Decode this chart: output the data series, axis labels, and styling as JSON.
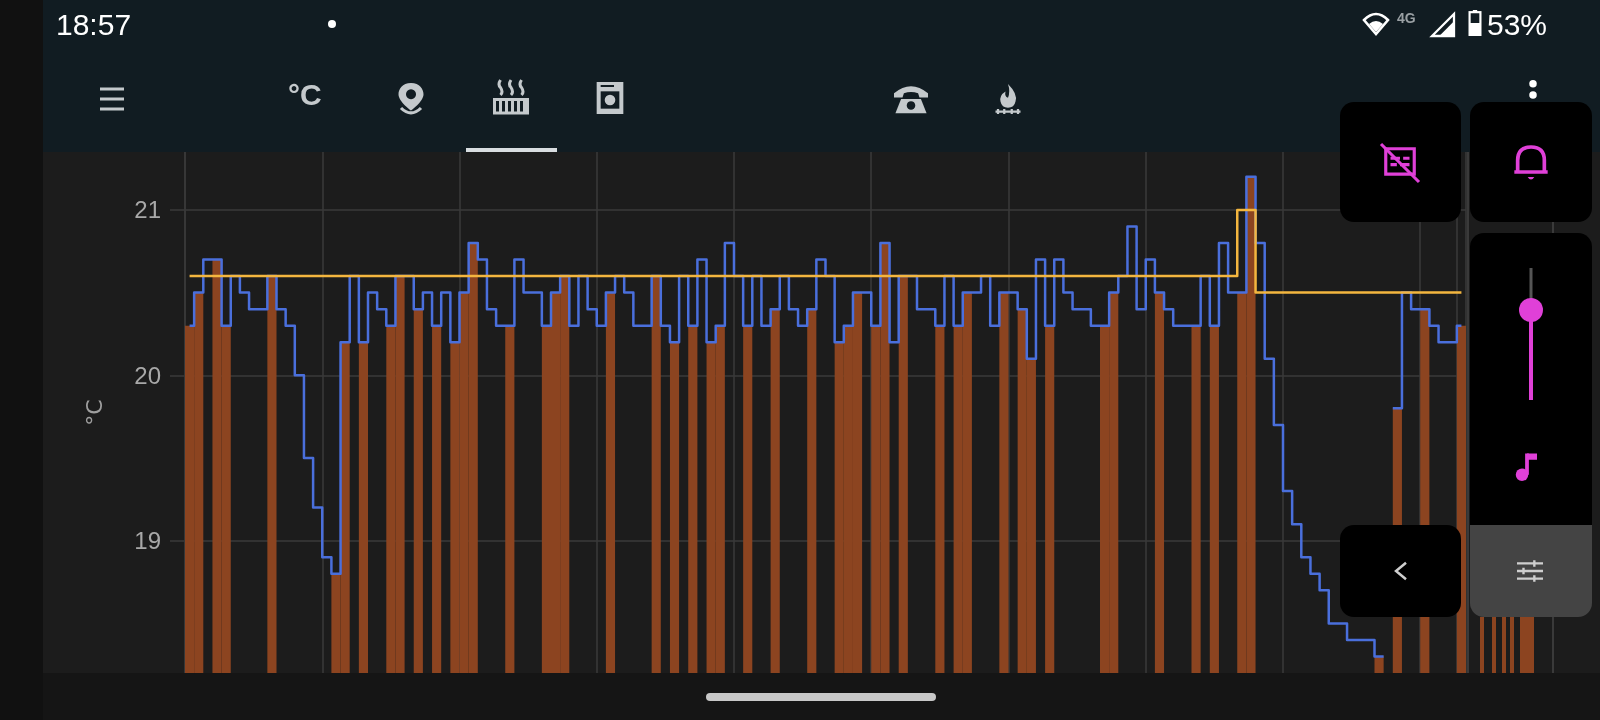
{
  "chart_data": {
    "type": "step",
    "ylabel": "°C",
    "categories": [
      null,
      null,
      null,
      null,
      null,
      null,
      null,
      null,
      null,
      null,
      null,
      null,
      null,
      null,
      null,
      null,
      null,
      null,
      null,
      null,
      null,
      null,
      null,
      null,
      null,
      null,
      null,
      null,
      null,
      null,
      null,
      null,
      null,
      null,
      null,
      null,
      null,
      null,
      null,
      null,
      null,
      null,
      null,
      null,
      null,
      null,
      null,
      null,
      null,
      null,
      null,
      null,
      null,
      null,
      null,
      null,
      null,
      null,
      null,
      null,
      null,
      null,
      null,
      null,
      null,
      null,
      null,
      null,
      null,
      null,
      null,
      null,
      null,
      null,
      null,
      null,
      null,
      null,
      null,
      null,
      null,
      null,
      null,
      null,
      null,
      null,
      null,
      null,
      null,
      null,
      null,
      null,
      null,
      null,
      null,
      null,
      null,
      null,
      null,
      null,
      null,
      null,
      null,
      null,
      null,
      null,
      null,
      null,
      null,
      null,
      null,
      null,
      null,
      null,
      null,
      null,
      null,
      null,
      null,
      null,
      null,
      null,
      null,
      null,
      null,
      null,
      null,
      null,
      null,
      null,
      null,
      null,
      null,
      null,
      null,
      null,
      null,
      null,
      null,
      null
    ],
    "series": [
      {
        "type": "bar",
        "color": "#8c4420",
        "values": [
          20.3,
          20.5,
          null,
          20.7,
          20.3,
          null,
          null,
          null,
          null,
          20.6,
          null,
          null,
          null,
          null,
          null,
          null,
          18.8,
          20.2,
          null,
          20.2,
          null,
          null,
          20.3,
          20.6,
          null,
          20.4,
          null,
          20.3,
          null,
          20.2,
          20.5,
          20.8,
          null,
          null,
          null,
          20.3,
          null,
          null,
          null,
          20.3,
          20.5,
          20.6,
          null,
          null,
          null,
          null,
          20.5,
          null,
          null,
          null,
          null,
          20.6,
          null,
          20.2,
          null,
          20.3,
          null,
          20.2,
          20.3,
          null,
          null,
          20.3,
          null,
          null,
          20.4,
          null,
          null,
          null,
          20.4,
          null,
          null,
          20.2,
          20.3,
          20.5,
          null,
          20.3,
          20.8,
          null,
          20.6,
          null,
          null,
          null,
          20.3,
          null,
          20.3,
          20.5,
          null,
          null,
          null,
          20.5,
          null,
          20.4,
          20.1,
          null,
          20.3,
          null,
          null,
          null,
          null,
          null,
          20.3,
          20.5,
          null,
          null,
          null,
          null,
          20.5,
          null,
          null,
          null,
          20.3,
          null,
          20.3,
          null,
          null,
          20.5,
          21.2,
          null,
          null,
          null,
          null,
          null,
          null,
          null,
          null,
          null,
          null,
          null,
          null,
          null,
          18.3,
          null,
          19.8,
          null,
          null,
          20.4,
          null,
          null,
          null,
          20.3
        ]
      },
      {
        "color": "#4a6fdc",
        "values": [
          20.3,
          20.5,
          20.7,
          20.7,
          20.3,
          20.6,
          20.5,
          20.4,
          20.4,
          20.6,
          20.4,
          20.3,
          20.0,
          19.5,
          19.2,
          18.9,
          18.8,
          20.2,
          20.6,
          20.2,
          20.5,
          20.4,
          20.3,
          20.6,
          20.6,
          20.4,
          20.5,
          20.3,
          20.5,
          20.2,
          20.5,
          20.8,
          20.7,
          20.4,
          20.3,
          20.3,
          20.7,
          20.5,
          20.5,
          20.3,
          20.5,
          20.6,
          20.3,
          20.6,
          20.4,
          20.3,
          20.5,
          20.6,
          20.5,
          20.3,
          20.3,
          20.6,
          20.3,
          20.2,
          20.6,
          20.3,
          20.7,
          20.2,
          20.3,
          20.8,
          20.6,
          20.3,
          20.6,
          20.3,
          20.4,
          20.6,
          20.4,
          20.3,
          20.4,
          20.7,
          20.6,
          20.2,
          20.3,
          20.5,
          20.5,
          20.3,
          20.8,
          20.2,
          20.6,
          20.6,
          20.4,
          20.4,
          20.3,
          20.6,
          20.3,
          20.5,
          20.5,
          20.6,
          20.3,
          20.5,
          20.5,
          20.4,
          20.1,
          20.7,
          20.3,
          20.7,
          20.5,
          20.4,
          20.4,
          20.3,
          20.3,
          20.5,
          20.6,
          20.9,
          20.4,
          20.7,
          20.5,
          20.4,
          20.3,
          20.3,
          20.3,
          20.6,
          20.3,
          20.8,
          20.5,
          20.5,
          21.2,
          20.8,
          20.1,
          19.7,
          19.3,
          19.1,
          18.9,
          18.8,
          18.7,
          18.5,
          18.5,
          18.4,
          18.4,
          18.4,
          18.3,
          null,
          19.8,
          20.5,
          20.4,
          20.4,
          20.3,
          20.2,
          20.2,
          20.3
        ]
      },
      {
        "color": "#f4b63f",
        "values": [
          20.6,
          20.6,
          20.6,
          20.6,
          20.6,
          20.6,
          20.6,
          20.6,
          20.6,
          20.6,
          20.6,
          20.6,
          20.6,
          20.6,
          20.6,
          20.6,
          20.6,
          20.6,
          20.6,
          20.6,
          20.6,
          20.6,
          20.6,
          20.6,
          20.6,
          20.6,
          20.6,
          20.6,
          20.6,
          20.6,
          20.6,
          20.6,
          20.6,
          20.6,
          20.6,
          20.6,
          20.6,
          20.6,
          20.6,
          20.6,
          20.6,
          20.6,
          20.6,
          20.6,
          20.6,
          20.6,
          20.6,
          20.6,
          20.6,
          20.6,
          20.6,
          20.6,
          20.6,
          20.6,
          20.6,
          20.6,
          20.6,
          20.6,
          20.6,
          20.6,
          20.6,
          20.6,
          20.6,
          20.6,
          20.6,
          20.6,
          20.6,
          20.6,
          20.6,
          20.6,
          20.6,
          20.6,
          20.6,
          20.6,
          20.6,
          20.6,
          20.6,
          20.6,
          20.6,
          20.6,
          20.6,
          20.6,
          20.6,
          20.6,
          20.6,
          20.6,
          20.6,
          20.6,
          20.6,
          20.6,
          20.6,
          20.6,
          20.6,
          20.6,
          20.6,
          20.6,
          20.6,
          20.6,
          20.6,
          20.6,
          20.6,
          20.6,
          20.6,
          20.6,
          20.6,
          20.6,
          20.6,
          20.6,
          20.6,
          20.6,
          20.6,
          20.6,
          20.6,
          20.6,
          20.6,
          21.0,
          21.0,
          20.5,
          20.5,
          20.5,
          20.5,
          20.5,
          20.5,
          20.5,
          20.5,
          20.5,
          20.5,
          20.5,
          20.5,
          20.5,
          20.5,
          20.5,
          20.5,
          20.5,
          20.5,
          20.5,
          20.5,
          20.5,
          20.5,
          20.5
        ]
      }
    ],
    "ylim": [
      18.2,
      21.35
    ],
    "yticks": [
      19,
      20,
      21
    ],
    "grid": true,
    "tick_labels": "y",
    "marker": "none",
    "annotations": [
      "18:57",
      "4G",
      "53%",
      "°C"
    ]
  }
}
